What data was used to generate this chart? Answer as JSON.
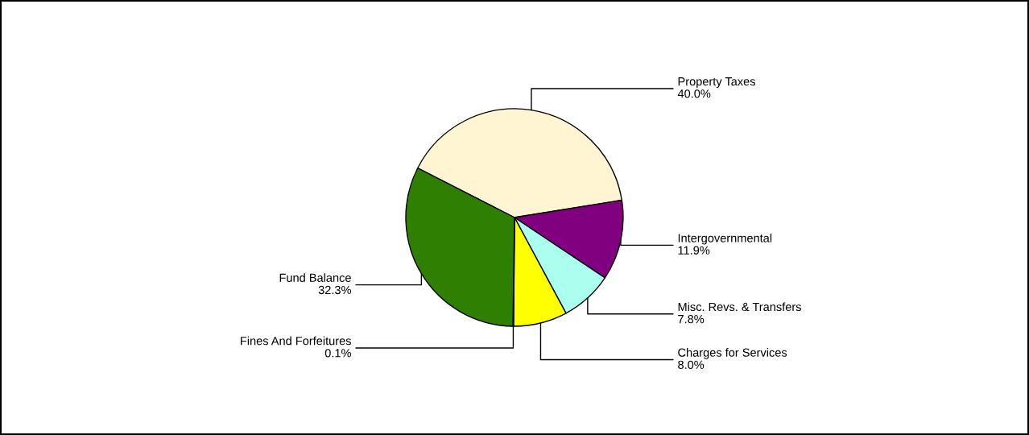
{
  "chart_data": {
    "type": "pie",
    "categories": [
      "Property Taxes",
      "Intergovernmental",
      "Misc. Revs. & Transfers",
      "Charges for Services",
      "Fines And Forfeitures",
      "Fund Balance"
    ],
    "values": [
      40.0,
      11.9,
      7.8,
      8.0,
      0.1,
      32.3
    ],
    "colors": [
      "#fff5d2",
      "#800080",
      "#aaffee",
      "#ffff00",
      "#c8c800",
      "#2f8000"
    ],
    "value_labels": [
      "40.0%",
      "11.9%",
      "7.8%",
      "8.0%",
      "0.1%",
      "32.3%"
    ]
  }
}
